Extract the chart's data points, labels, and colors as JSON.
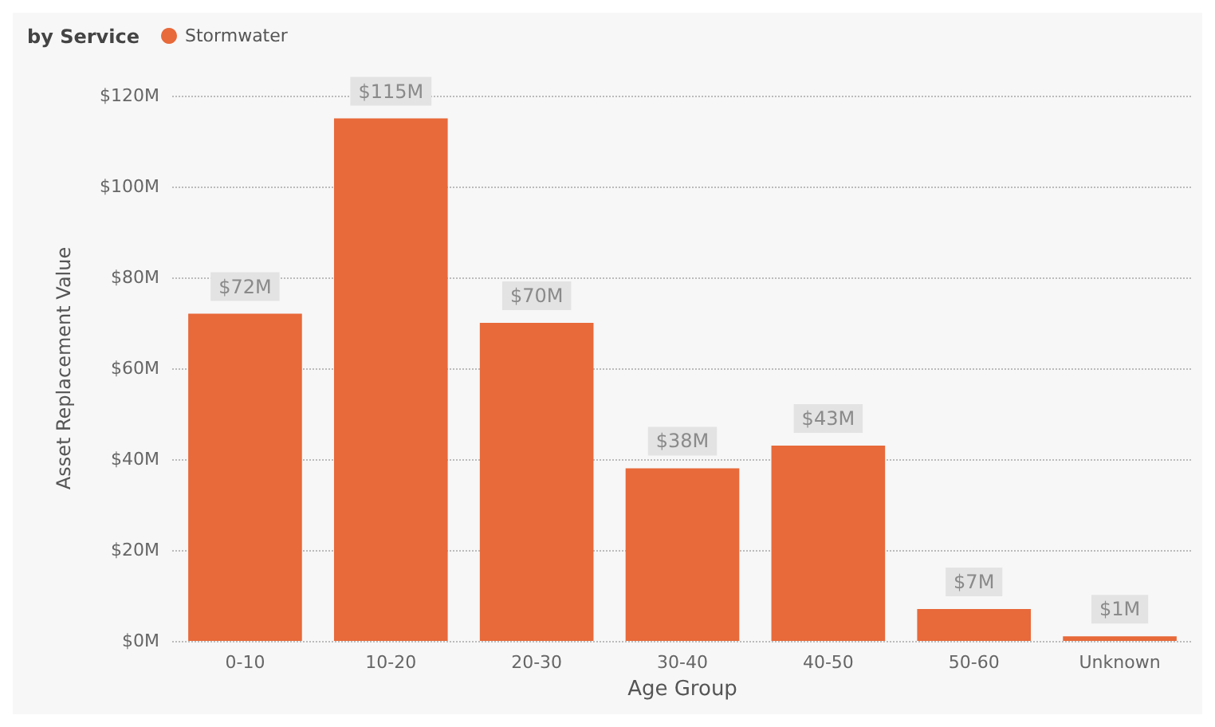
{
  "chart_data": {
    "type": "bar",
    "legend_title": "by Service",
    "xlabel": "Age Group",
    "ylabel": "Asset Replacement Value",
    "categories": [
      "0-10",
      "10-20",
      "20-30",
      "30-40",
      "40-50",
      "50-60",
      "Unknown"
    ],
    "series": [
      {
        "name": "Stormwater",
        "color": "#e8693a",
        "values": [
          72,
          115,
          70,
          38,
          43,
          7,
          1
        ],
        "value_labels": [
          "$72M",
          "$115M",
          "$70M",
          "$38M",
          "$43M",
          "$7M",
          "$1M"
        ]
      }
    ],
    "ylim": [
      0,
      120
    ],
    "yticks": [
      {
        "value": 0,
        "label": "$0M"
      },
      {
        "value": 20,
        "label": "$20M"
      },
      {
        "value": 40,
        "label": "$40M"
      },
      {
        "value": 60,
        "label": "$60M"
      },
      {
        "value": 80,
        "label": "$80M"
      },
      {
        "value": 100,
        "label": "$100M"
      },
      {
        "value": 120,
        "label": "$120M"
      }
    ],
    "grid": "y",
    "legend": "top left"
  }
}
